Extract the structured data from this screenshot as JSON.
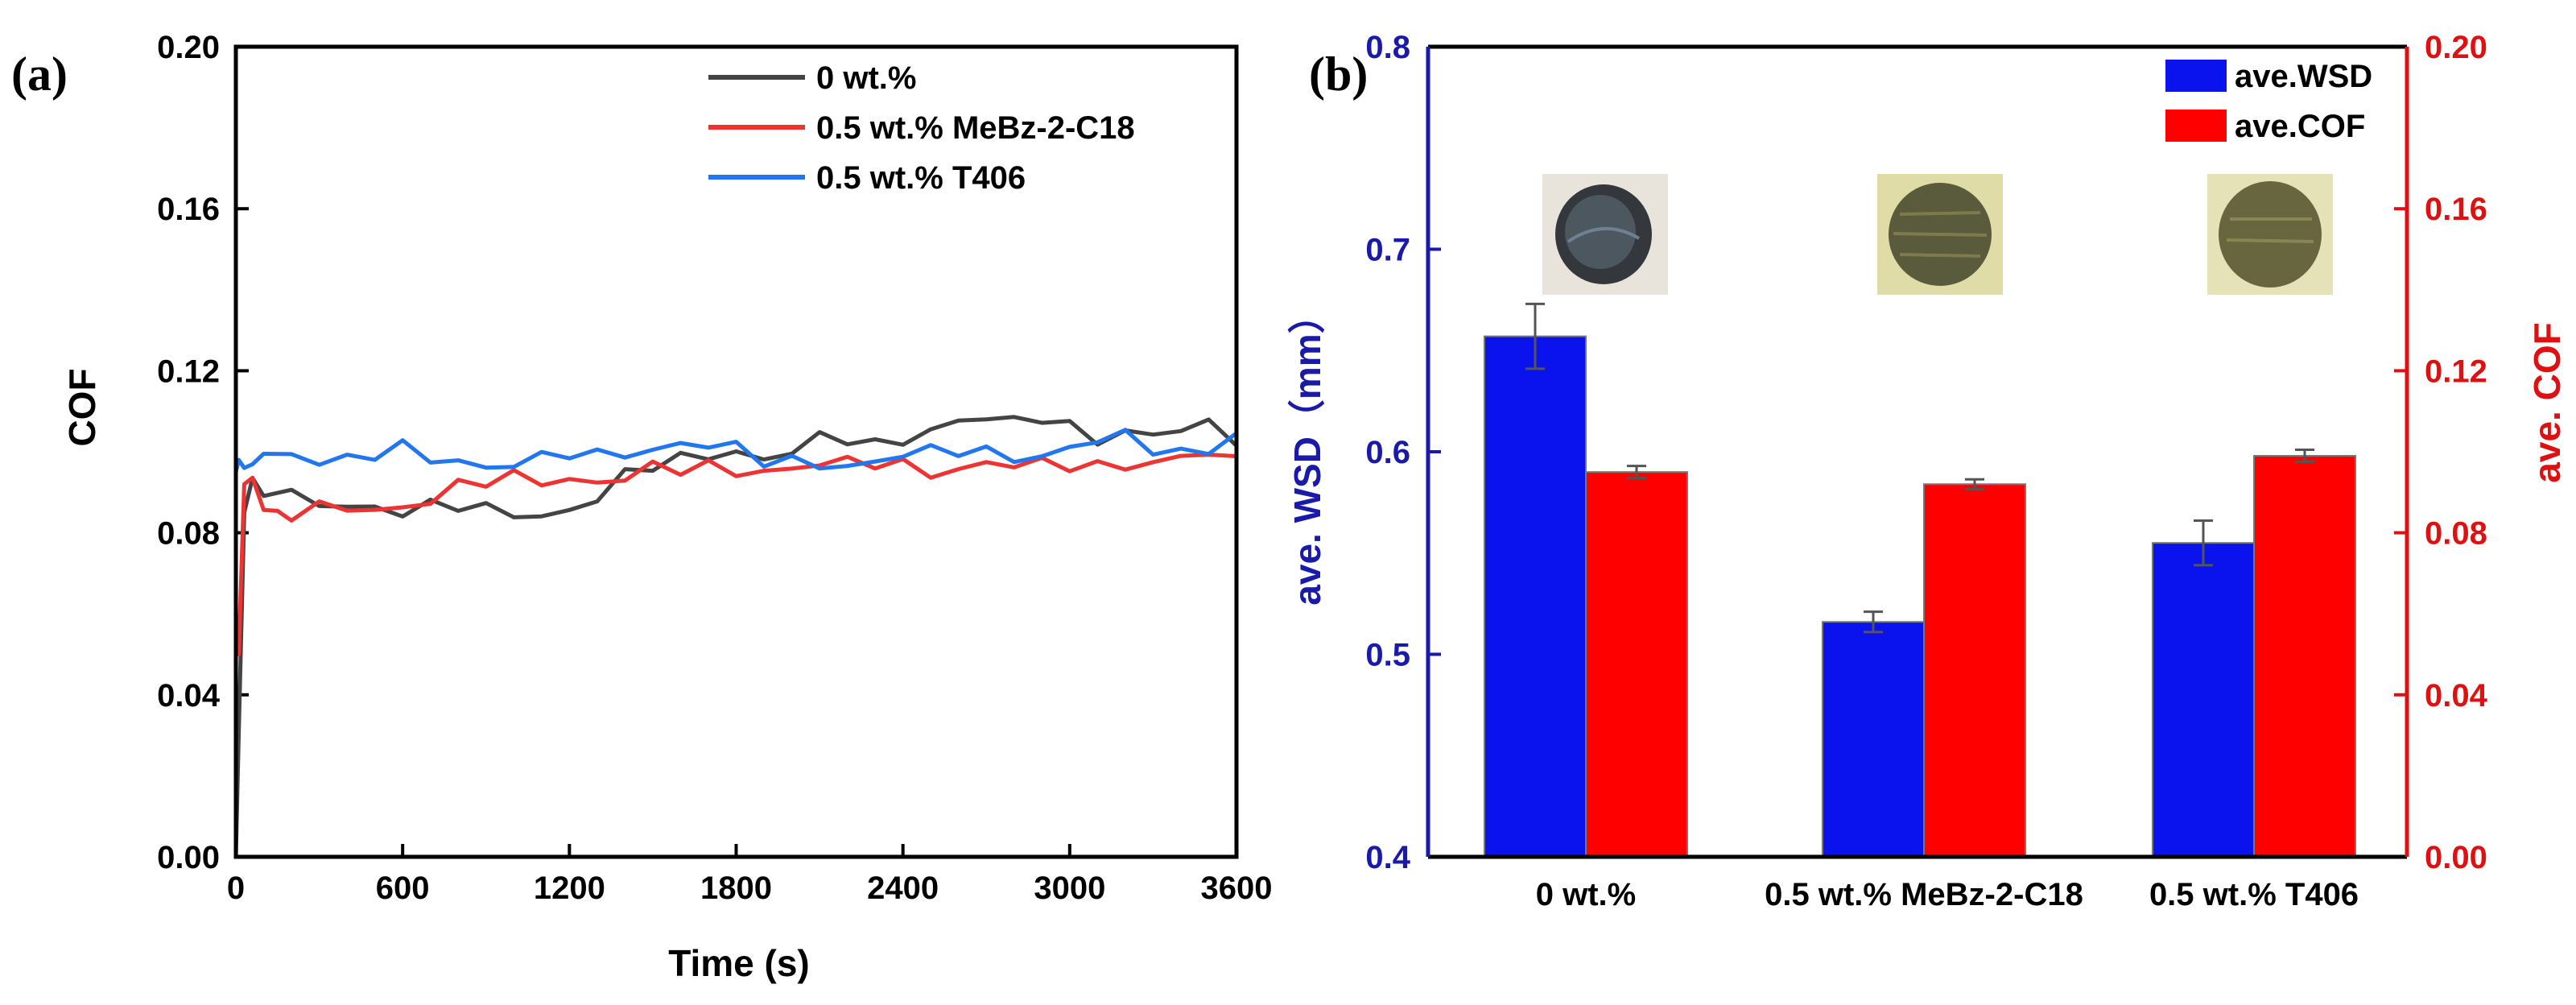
{
  "chart_data": [
    {
      "type": "line",
      "panel_label": "(a)",
      "xlabel": "Time (s)",
      "ylabel": "COF",
      "xlim": [
        0,
        3600
      ],
      "ylim": [
        0.0,
        0.2
      ],
      "xticks": [
        "0",
        "600",
        "1200",
        "1800",
        "2400",
        "3000",
        "3600"
      ],
      "yticks": [
        "0.00",
        "0.04",
        "0.08",
        "0.12",
        "0.16",
        "0.20"
      ],
      "legend_position": "top-right",
      "series": [
        {
          "name": "0 wt.%",
          "color": "#444444",
          "x": [
            0,
            10,
            30,
            60,
            100,
            200,
            300,
            400,
            500,
            600,
            700,
            800,
            900,
            1000,
            1100,
            1200,
            1300,
            1400,
            1500,
            1600,
            1700,
            1800,
            1900,
            2000,
            2100,
            2200,
            2300,
            2400,
            2500,
            2600,
            2700,
            2800,
            2900,
            3000,
            3100,
            3200,
            3300,
            3400,
            3500,
            3600
          ],
          "values": [
            0.0,
            0.03,
            0.085,
            0.092,
            0.09,
            0.088,
            0.087,
            0.087,
            0.087,
            0.086,
            0.086,
            0.086,
            0.085,
            0.085,
            0.085,
            0.086,
            0.089,
            0.093,
            0.096,
            0.098,
            0.1,
            0.101,
            0.098,
            0.1,
            0.102,
            0.103,
            0.102,
            0.104,
            0.106,
            0.107,
            0.108,
            0.106,
            0.109,
            0.107,
            0.104,
            0.105,
            0.103,
            0.105,
            0.106,
            0.104
          ]
        },
        {
          "name": "0.5 wt.% MeBz-2-C18",
          "color": "#ee3333",
          "x": [
            0,
            10,
            30,
            60,
            100,
            150,
            200,
            300,
            400,
            500,
            600,
            700,
            800,
            900,
            1000,
            1100,
            1200,
            1300,
            1400,
            1500,
            1600,
            1700,
            1800,
            1900,
            2000,
            2100,
            2200,
            2300,
            2400,
            2500,
            2600,
            2700,
            2800,
            2900,
            3000,
            3100,
            3200,
            3300,
            3400,
            3500,
            3600
          ],
          "values": [
            0.06,
            0.05,
            0.092,
            0.094,
            0.088,
            0.084,
            0.084,
            0.085,
            0.086,
            0.086,
            0.087,
            0.089,
            0.091,
            0.092,
            0.093,
            0.093,
            0.094,
            0.093,
            0.094,
            0.095,
            0.095,
            0.096,
            0.096,
            0.096,
            0.096,
            0.097,
            0.096,
            0.097,
            0.097,
            0.096,
            0.096,
            0.097,
            0.096,
            0.096,
            0.097,
            0.097,
            0.098,
            0.097,
            0.098,
            0.099,
            0.097
          ]
        },
        {
          "name": "0.5 wt.% T406",
          "color": "#2277ee",
          "x": [
            0,
            10,
            30,
            60,
            100,
            200,
            300,
            400,
            500,
            600,
            700,
            800,
            900,
            1000,
            1100,
            1200,
            1300,
            1400,
            1500,
            1600,
            1700,
            1800,
            1900,
            2000,
            2100,
            2200,
            2300,
            2400,
            2500,
            2600,
            2700,
            2800,
            2900,
            3000,
            3100,
            3200,
            3300,
            3400,
            3500,
            3600
          ],
          "values": [
            0.095,
            0.098,
            0.096,
            0.097,
            0.099,
            0.1,
            0.099,
            0.098,
            0.099,
            0.1,
            0.098,
            0.098,
            0.097,
            0.098,
            0.098,
            0.099,
            0.098,
            0.1,
            0.101,
            0.103,
            0.102,
            0.1,
            0.097,
            0.097,
            0.098,
            0.097,
            0.098,
            0.099,
            0.099,
            0.1,
            0.1,
            0.1,
            0.099,
            0.101,
            0.102,
            0.103,
            0.101,
            0.1,
            0.102,
            0.104
          ]
        }
      ]
    },
    {
      "type": "bar",
      "panel_label": "(b)",
      "categories": [
        "0 wt.%",
        "0.5 wt.% MeBz-2-C18",
        "0.5 wt.% T406"
      ],
      "ylabel": "ave. WSD（mm）",
      "ylabel_right": "ave. COF",
      "ylim": [
        0.4,
        0.8
      ],
      "ylim_right": [
        0.0,
        0.2
      ],
      "yticks": [
        "0.4",
        "0.5",
        "0.6",
        "0.7",
        "0.8"
      ],
      "yticks_right": [
        "0.00",
        "0.04",
        "0.08",
        "0.12",
        "0.16",
        "0.20"
      ],
      "left_axis_color": "#1a1aa8",
      "right_axis_color": "#dd1111",
      "legend_position": "top-right",
      "series": [
        {
          "name": "ave.WSD",
          "axis": "left",
          "color": "#0a12ee",
          "values": [
            0.657,
            0.516,
            0.555
          ],
          "errors": [
            0.016,
            0.005,
            0.011
          ]
        },
        {
          "name": "ave.COF",
          "axis": "right",
          "color": "#ff0000",
          "values": [
            0.095,
            0.092,
            0.099
          ],
          "errors": [
            0.0015,
            0.0012,
            0.0015
          ]
        }
      ]
    }
  ]
}
